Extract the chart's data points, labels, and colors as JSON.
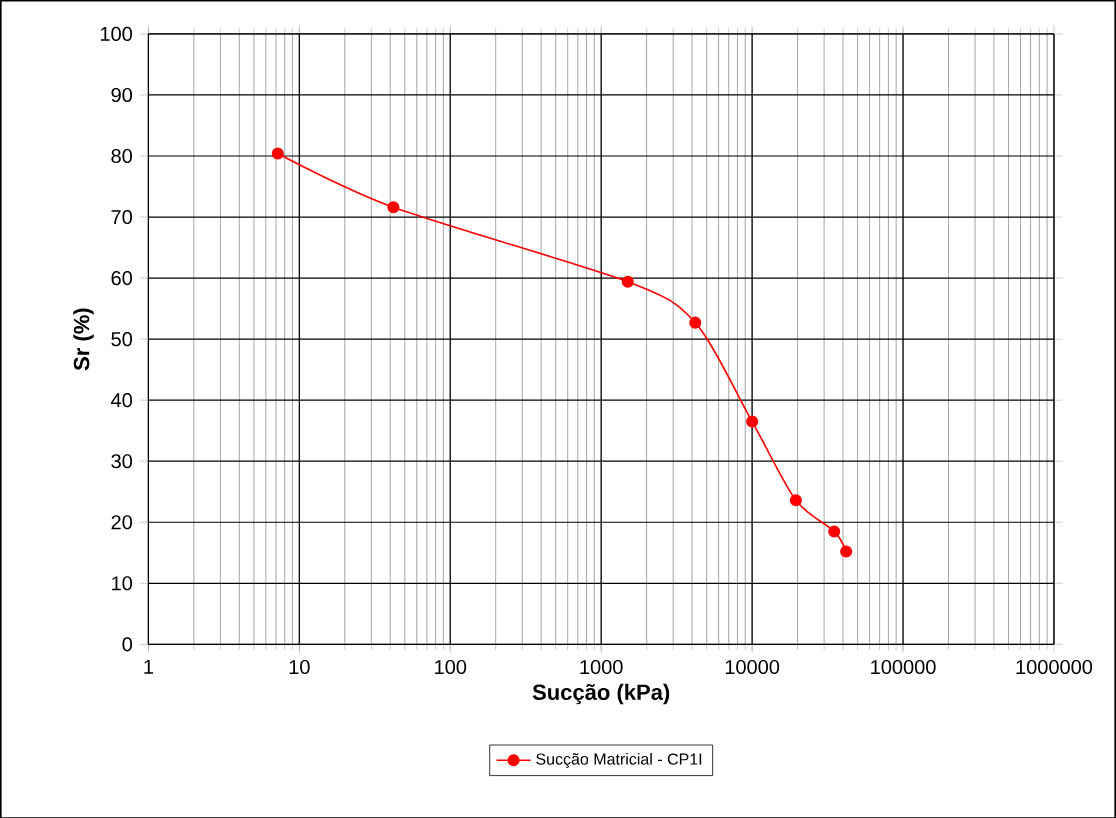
{
  "chart_data": {
    "type": "line",
    "xlabel": "Sucção (kPa)",
    "ylabel": "Sr (%)",
    "log": "x",
    "xlim": [
      1,
      1000000
    ],
    "xticks": [
      1,
      10,
      100,
      1000,
      10000,
      100000,
      1000000
    ],
    "ylim": [
      0,
      100
    ],
    "yticks": [
      0,
      10,
      20,
      30,
      40,
      50,
      60,
      70,
      80,
      90,
      100
    ],
    "grid": true,
    "legend": "bottom",
    "marker": "circle",
    "line_style": "solid",
    "series": [
      {
        "name": "Sucção Matricial - CP1I",
        "color": "#ff0000",
        "x": [
          7.2,
          42,
          1500,
          4200,
          10000,
          19500,
          35000,
          42000
        ],
        "values": [
          80.4,
          71.6,
          59.4,
          52.7,
          36.5,
          23.6,
          18.5,
          15.2
        ]
      }
    ]
  }
}
